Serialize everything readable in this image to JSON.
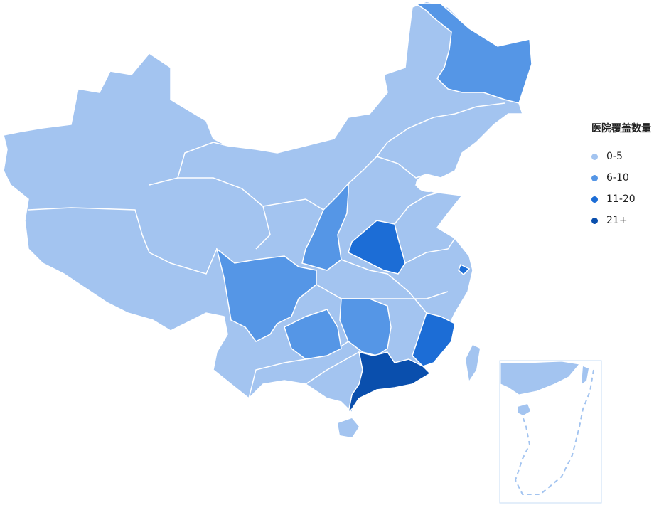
{
  "legend": {
    "title": "医院覆盖数量",
    "items": [
      {
        "label": "0-5",
        "color": "#a3c4f0"
      },
      {
        "label": "6-10",
        "color": "#5596e6"
      },
      {
        "label": "11-20",
        "color": "#1c6dd6"
      },
      {
        "label": "21+",
        "color": "#0a4fad"
      }
    ]
  },
  "regions": [
    {
      "id": "heilongjiang",
      "level": 1
    },
    {
      "id": "shaanxi",
      "level": 1
    },
    {
      "id": "sichuan",
      "level": 1
    },
    {
      "id": "guizhou",
      "level": 1
    },
    {
      "id": "hunan",
      "level": 1
    },
    {
      "id": "henan",
      "level": 2
    },
    {
      "id": "fujian",
      "level": 2
    },
    {
      "id": "shanghai",
      "level": 2
    },
    {
      "id": "guangdong",
      "level": 3
    },
    {
      "id": "hainan",
      "level": 0
    },
    {
      "id": "taiwan",
      "level": 0
    }
  ]
}
